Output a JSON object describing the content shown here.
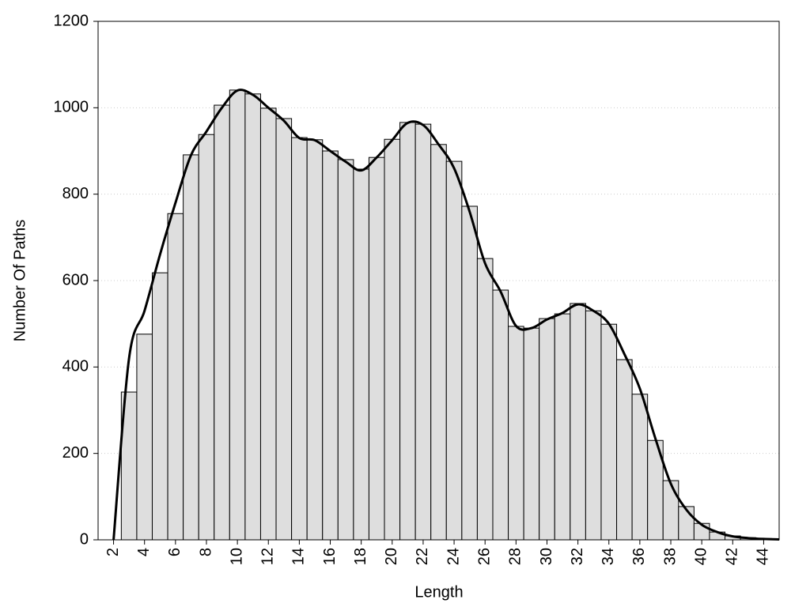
{
  "chart_data": {
    "type": "histogram",
    "xlabel": "Length",
    "ylabel": "Number Of Paths",
    "bins": [
      2.5,
      3.5,
      4.5,
      5.5,
      6.5,
      7.5,
      8.5,
      9.5,
      10.5,
      11.5,
      12.5,
      13.5,
      14.5,
      15.5,
      16.5,
      17.5,
      18.5,
      19.5,
      20.5,
      21.5,
      22.5,
      23.5,
      24.5,
      25.5,
      26.5,
      27.5,
      28.5,
      29.5,
      30.5,
      31.5,
      32.5,
      33.5,
      34.5,
      35.5,
      36.5,
      37.5,
      38.5,
      39.5,
      40.5,
      41.5,
      42.5,
      43.5,
      44.5
    ],
    "values": [
      342,
      476,
      618,
      755,
      891,
      938,
      1006,
      1041,
      1032,
      999,
      975,
      931,
      926,
      900,
      880,
      858,
      885,
      927,
      966,
      962,
      915,
      876,
      772,
      651,
      578,
      494,
      490,
      512,
      523,
      547,
      530,
      499,
      417,
      337,
      230,
      137,
      77,
      38,
      18,
      9,
      5,
      3
    ],
    "color": "#dedede",
    "curve": {
      "color": "#000000",
      "x": [
        2,
        3,
        4,
        5,
        6,
        7,
        8,
        9,
        10,
        11,
        12,
        13,
        14,
        15,
        16,
        17,
        18,
        19,
        20,
        21,
        22,
        23,
        24,
        25,
        26,
        27,
        28,
        29,
        30,
        31,
        32,
        33,
        34,
        35,
        36,
        37,
        38,
        39,
        40,
        41,
        42,
        43,
        44,
        45
      ],
      "values": [
        0,
        420,
        530,
        660,
        780,
        890,
        945,
        1000,
        1040,
        1030,
        1000,
        970,
        930,
        925,
        900,
        875,
        855,
        885,
        925,
        965,
        960,
        915,
        860,
        760,
        640,
        575,
        495,
        490,
        510,
        525,
        545,
        530,
        500,
        430,
        350,
        235,
        130,
        70,
        35,
        18,
        8,
        4,
        2,
        1
      ]
    },
    "xlim": [
      1,
      45
    ],
    "xticks": [
      2,
      4,
      6,
      8,
      10,
      12,
      14,
      16,
      18,
      20,
      22,
      24,
      26,
      28,
      30,
      32,
      34,
      36,
      38,
      40,
      42,
      44
    ],
    "ylim": [
      0,
      1200
    ],
    "yticks": [
      0,
      200,
      400,
      600,
      800,
      1000,
      1200
    ],
    "grid": true
  }
}
